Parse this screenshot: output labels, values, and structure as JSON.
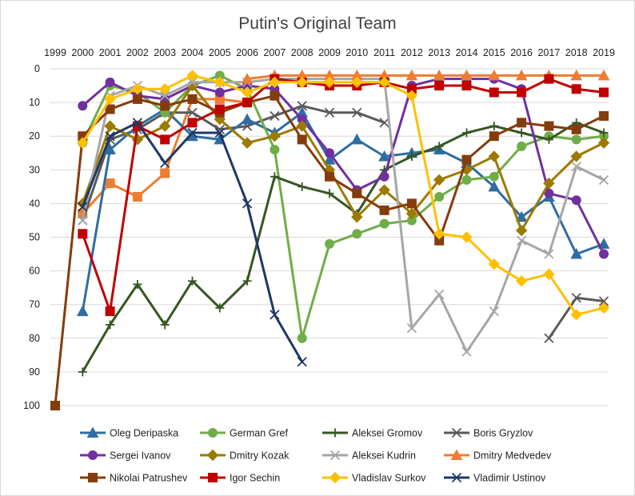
{
  "chart_data": {
    "type": "line",
    "title": "Putin's Original Team",
    "xlabel": "",
    "ylabel": "",
    "x": [
      1999,
      2000,
      2001,
      2002,
      2003,
      2004,
      2005,
      2006,
      2007,
      2008,
      2009,
      2010,
      2011,
      2012,
      2013,
      2014,
      2015,
      2016,
      2017,
      2018,
      2019
    ],
    "x_tick_labels": [
      "1999",
      "2000",
      "2001",
      "2002",
      "2003",
      "2004",
      "2005",
      "2006",
      "2007",
      "2008",
      "2009",
      "2010",
      "2011",
      "2012",
      "2013",
      "2014",
      "2015",
      "2016",
      "2017",
      "2018",
      "2019"
    ],
    "x_axis_position": "top",
    "y_reversed": true,
    "ylim": [
      0,
      100
    ],
    "y_ticks": [
      0,
      10,
      20,
      30,
      40,
      50,
      60,
      70,
      80,
      90,
      100
    ],
    "y_tick_labels": [
      "0",
      "10",
      "20",
      "30",
      "40",
      "50",
      "60",
      "70",
      "80",
      "90",
      "100"
    ],
    "grid": {
      "horizontal": true,
      "vertical": false
    },
    "legend_position": "bottom",
    "series": [
      {
        "name": "Oleg Deripaska",
        "color": "#2E6DA4",
        "marker": "triangle",
        "values": [
          null,
          72,
          24,
          17,
          12,
          20,
          21,
          15,
          19,
          13,
          27,
          21,
          26,
          25,
          24,
          28,
          35,
          44,
          38,
          55,
          52
        ]
      },
      {
        "name": "German Gref",
        "color": "#70AD47",
        "marker": "circle",
        "values": [
          null,
          22,
          5,
          7,
          13,
          5,
          2,
          6,
          24,
          80,
          52,
          49,
          46,
          45,
          38,
          33,
          32,
          23,
          20,
          21,
          20
        ]
      },
      {
        "name": "Aleksei Gromov",
        "color": "#375623",
        "marker": "plus",
        "values": [
          null,
          90,
          76,
          64,
          76,
          63,
          71,
          63,
          32,
          35,
          37,
          43,
          30,
          26,
          23,
          19,
          17,
          19,
          21,
          16,
          19
        ]
      },
      {
        "name": "Boris Gryzlov",
        "color": "#595959",
        "marker": "x",
        "values": [
          null,
          null,
          null,
          null,
          null,
          null,
          null,
          null,
          null,
          null,
          null,
          null,
          null,
          null,
          null,
          null,
          null,
          null,
          80,
          68,
          69
        ]
      },
      {
        "name": "Sergei Ivanov",
        "color": "#7030A0",
        "marker": "circle",
        "values": [
          null,
          11,
          4,
          8,
          9,
          5,
          7,
          5,
          6,
          15,
          25,
          36,
          32,
          5,
          3,
          3,
          3,
          6,
          37,
          39,
          55
        ]
      },
      {
        "name": "Dmitry Kozak",
        "color": "#9C7A00",
        "marker": "diamond",
        "values": [
          null,
          40,
          17,
          21,
          17,
          5,
          15,
          22,
          20,
          17,
          30,
          44,
          36,
          43,
          33,
          30,
          26,
          48,
          34,
          26,
          22
        ]
      },
      {
        "name": "Aleksei Kudrin",
        "color": "#A6A6A6",
        "marker": "x",
        "values": [
          null,
          45,
          8,
          5,
          8,
          4,
          4,
          4,
          3,
          3,
          3,
          3,
          3,
          77,
          67,
          84,
          72,
          51,
          55,
          29,
          33
        ]
      },
      {
        "name": "Dmitry Medvedev",
        "color": "#ED7D31",
        "marker": "triangle",
        "values": [
          null,
          null,
          null,
          null,
          null,
          null,
          null,
          3,
          2,
          2,
          2,
          2,
          2,
          2,
          2,
          2,
          2,
          2,
          2,
          2,
          2
        ]
      },
      {
        "name": "Nikolai Patrushev",
        "color": "#843C0C",
        "marker": "square",
        "values": [
          100,
          20,
          12,
          9,
          11,
          9,
          13,
          10,
          8,
          21,
          32,
          37,
          42,
          40,
          51,
          27,
          20,
          16,
          17,
          18,
          14
        ]
      },
      {
        "name": "Igor Sechin",
        "color": "#C00000",
        "marker": "square",
        "values": [
          null,
          49,
          72,
          17,
          21,
          16,
          12,
          10,
          3,
          4,
          5,
          5,
          4,
          6,
          5,
          5,
          7,
          7,
          3,
          6,
          7
        ]
      },
      {
        "name": "Vladislav Surkov",
        "color": "#FFC000",
        "marker": "diamond",
        "values": [
          null,
          22,
          9,
          6,
          6,
          2,
          4,
          7,
          4,
          4,
          4,
          4,
          4,
          8,
          49,
          50,
          58,
          63,
          61,
          73,
          71
        ]
      },
      {
        "name": "Vladimir Ustinov",
        "color": "#1F3864",
        "marker": "x",
        "values": [
          null,
          41,
          20,
          16,
          28,
          19,
          19,
          40,
          73,
          87,
          null,
          null,
          null,
          null,
          null,
          null,
          null,
          null,
          null,
          null,
          null
        ]
      }
    ],
    "extra_series_orange_early": {
      "name": "Dmitry Medvedev",
      "color": "#ED7D31",
      "marker": "square",
      "values": [
        null,
        43,
        34,
        38,
        31,
        9,
        9,
        10,
        null,
        null,
        null,
        null,
        null,
        null,
        null,
        null,
        null,
        null,
        null,
        null,
        null
      ]
    },
    "extra_series_gryzlov_early": {
      "name": "Boris Gryzlov",
      "color": "#595959",
      "marker": "x",
      "values": [
        null,
        45,
        21,
        18,
        13,
        13,
        18,
        17,
        14,
        11,
        13,
        13,
        16,
        null,
        null,
        null,
        null,
        null,
        null,
        null,
        null
      ]
    }
  }
}
